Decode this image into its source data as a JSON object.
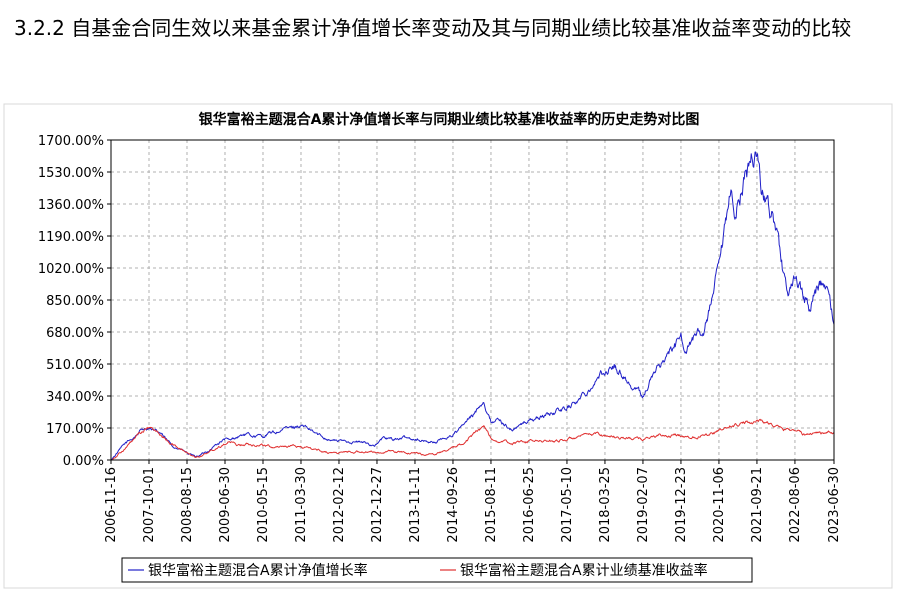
{
  "section_heading": "3.2.2 自基金合同生效以来基金累计净值增长率变动及其与同期业绩比较基准收益率变动的比较",
  "chart_data": {
    "type": "line",
    "title": "银华富裕主题混合A累计净值增长率与同期业绩比较基准收益率的历史走势对比图",
    "xlabel": "",
    "ylabel": "",
    "ylim": [
      0,
      1700
    ],
    "yticks": [
      "0.00%",
      "170.00%",
      "340.00%",
      "510.00%",
      "680.00%",
      "850.00%",
      "1020.00%",
      "1190.00%",
      "1360.00%",
      "1530.00%",
      "1700.00%"
    ],
    "yticks_values": [
      0,
      170,
      340,
      510,
      680,
      850,
      1020,
      1190,
      1360,
      1530,
      1700
    ],
    "xticks": [
      "2006-11-16",
      "2007-10-01",
      "2008-08-15",
      "2009-06-30",
      "2010-05-15",
      "2011-03-30",
      "2012-02-12",
      "2012-12-27",
      "2013-11-11",
      "2014-09-26",
      "2015-08-11",
      "2016-06-25",
      "2017-05-10",
      "2018-03-25",
      "2019-02-07",
      "2019-12-23",
      "2020-11-06",
      "2021-09-21",
      "2022-08-06",
      "2023-06-30"
    ],
    "grid": true,
    "legend_position": "bottom",
    "series": [
      {
        "name": "银华富裕主题混合A累计净值增长率",
        "color": "#2020c8",
        "x": [
          "2006-11-16",
          "2007-01-15",
          "2007-03-15",
          "2007-05-15",
          "2007-07-15",
          "2007-08-20",
          "2007-10-01",
          "2007-11-15",
          "2008-01-10",
          "2008-03-01",
          "2008-05-01",
          "2008-07-01",
          "2008-09-01",
          "2008-10-20",
          "2008-12-01",
          "2009-02-01",
          "2009-04-01",
          "2009-06-30",
          "2009-08-10",
          "2009-10-01",
          "2009-12-01",
          "2010-02-01",
          "2010-05-15",
          "2010-07-01",
          "2010-09-01",
          "2010-11-10",
          "2011-01-01",
          "2011-03-30",
          "2011-06-01",
          "2011-09-01",
          "2011-12-01",
          "2012-02-12",
          "2012-05-01",
          "2012-08-01",
          "2012-12-03",
          "2012-12-27",
          "2013-02-15",
          "2013-05-01",
          "2013-08-01",
          "2013-11-11",
          "2014-02-01",
          "2014-05-01",
          "2014-09-26",
          "2014-12-01",
          "2015-02-01",
          "2015-04-01",
          "2015-05-15",
          "2015-06-12",
          "2015-07-15",
          "2015-08-11",
          "2015-09-15",
          "2016-01-01",
          "2016-02-01",
          "2016-06-25",
          "2016-10-01",
          "2017-01-01",
          "2017-05-10",
          "2017-09-01",
          "2018-01-01",
          "2018-03-25",
          "2018-06-01",
          "2018-09-01",
          "2018-10-20",
          "2019-01-01",
          "2019-02-07",
          "2019-04-15",
          "2019-08-01",
          "2019-12-23",
          "2020-02-01",
          "2020-04-01",
          "2020-07-10",
          "2020-09-01",
          "2020-11-06",
          "2021-01-01",
          "2021-02-15",
          "2021-03-15",
          "2021-06-01",
          "2021-09-21",
          "2021-12-01",
          "2022-03-01",
          "2022-04-27",
          "2022-06-20",
          "2022-08-06",
          "2022-10-20",
          "2022-12-01",
          "2023-02-01",
          "2023-04-01",
          "2023-05-15",
          "2023-06-30"
        ],
        "values": [
          0,
          45,
          85,
          115,
          150,
          170,
          175,
          150,
          140,
          100,
          70,
          55,
          30,
          15,
          25,
          45,
          75,
          110,
          100,
          120,
          135,
          130,
          125,
          140,
          145,
          165,
          170,
          185,
          160,
          130,
          110,
          100,
          100,
          95,
          80,
          85,
          115,
          110,
          115,
          115,
          100,
          95,
          135,
          170,
          210,
          250,
          300,
          320,
          250,
          200,
          220,
          180,
          160,
          210,
          230,
          250,
          280,
          330,
          420,
          470,
          500,
          450,
          400,
          360,
          340,
          430,
          540,
          640,
          600,
          640,
          700,
          820,
          1000,
          1200,
          1400,
          1300,
          1500,
          1640,
          1350,
          1250,
          1000,
          900,
          950,
          850,
          800,
          900,
          950,
          850,
          720
        ]
      },
      {
        "name": "银华富裕主题混合A累计业绩基准收益率",
        "color": "#e03030",
        "x": [
          "2006-11-16",
          "2007-03-15",
          "2007-06-15",
          "2007-10-01",
          "2008-01-10",
          "2008-04-01",
          "2008-07-01",
          "2008-10-20",
          "2009-01-01",
          "2009-04-01",
          "2009-07-30",
          "2009-10-01",
          "2010-01-01",
          "2010-05-15",
          "2010-08-01",
          "2010-11-10",
          "2011-03-30",
          "2011-08-01",
          "2011-12-01",
          "2012-02-12",
          "2012-08-01",
          "2012-12-27",
          "2013-05-01",
          "2013-11-11",
          "2014-04-01",
          "2014-09-26",
          "2014-12-15",
          "2015-04-01",
          "2015-06-12",
          "2015-08-11",
          "2015-09-15",
          "2016-02-01",
          "2016-06-25",
          "2017-01-01",
          "2017-05-10",
          "2017-10-01",
          "2018-01-25",
          "2018-03-25",
          "2018-10-20",
          "2019-02-07",
          "2019-04-15",
          "2019-12-23",
          "2020-03-20",
          "2020-07-10",
          "2020-11-06",
          "2021-02-15",
          "2021-09-21",
          "2022-01-01",
          "2022-04-27",
          "2022-08-06",
          "2022-10-31",
          "2023-01-15",
          "2023-06-30"
        ],
        "values": [
          0,
          60,
          120,
          175,
          130,
          90,
          55,
          15,
          30,
          60,
          100,
          80,
          85,
          80,
          70,
          75,
          70,
          55,
          40,
          40,
          45,
          40,
          45,
          35,
          30,
          60,
          95,
          140,
          180,
          120,
          100,
          90,
          100,
          100,
          110,
          125,
          140,
          130,
          115,
          110,
          125,
          130,
          120,
          140,
          150,
          180,
          210,
          195,
          160,
          165,
          130,
          150,
          140
        ]
      }
    ]
  }
}
